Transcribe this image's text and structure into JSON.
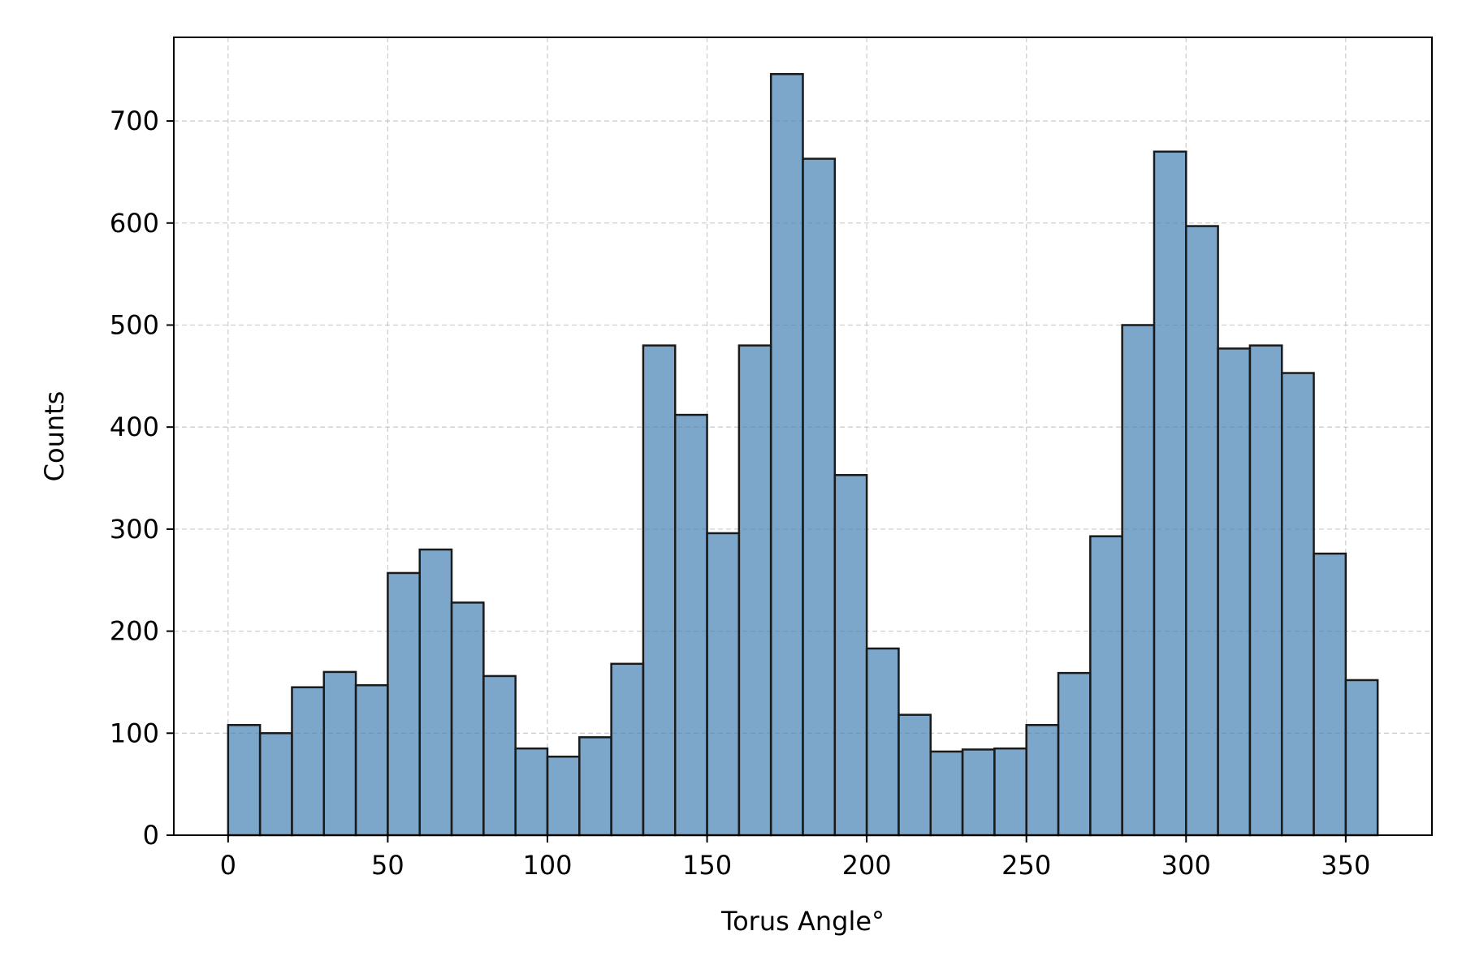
{
  "chart_data": {
    "type": "bar",
    "xlabel": "Torus Angle°",
    "ylabel": "Counts",
    "xlim": [
      -17,
      377
    ],
    "ylim": [
      0,
      782
    ],
    "x_ticks": [
      0,
      50,
      100,
      150,
      200,
      250,
      300,
      350
    ],
    "y_ticks": [
      0,
      100,
      200,
      300,
      400,
      500,
      600,
      700
    ],
    "grid": true,
    "bin_edges": [
      0,
      10,
      20,
      30,
      40,
      50,
      60,
      70,
      80,
      90,
      100,
      110,
      120,
      130,
      140,
      150,
      160,
      170,
      180,
      190,
      200,
      210,
      220,
      230,
      240,
      250,
      260,
      270,
      280,
      290,
      300,
      310,
      320,
      330,
      340,
      350,
      360
    ],
    "values": [
      108,
      100,
      145,
      160,
      147,
      257,
      280,
      228,
      156,
      85,
      77,
      96,
      168,
      480,
      412,
      296,
      480,
      746,
      663,
      353,
      183,
      118,
      82,
      84,
      85,
      108,
      159,
      293,
      500,
      670,
      597,
      477,
      480,
      453,
      276,
      152
    ],
    "colors": {
      "bar_fill": "#4682b4",
      "bar_edge": "#1a1a1a",
      "grid": "#b0b0b0"
    }
  }
}
